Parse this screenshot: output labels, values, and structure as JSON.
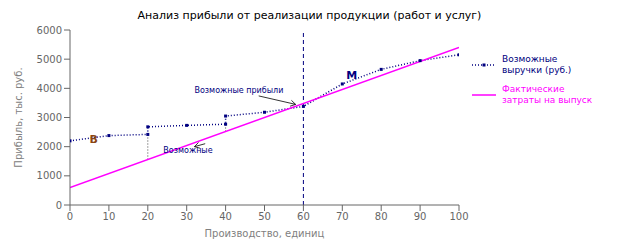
{
  "chart_data": {
    "type": "line",
    "title": "Анализ прибыли от реализации продукции (работ и услуг)",
    "x_label": "Производство, единиц",
    "y_label": "Прибыль, тыс. руб.",
    "xlim": [
      0,
      100
    ],
    "ylim": [
      0,
      6000
    ],
    "xticks": [
      0,
      10,
      20,
      30,
      40,
      50,
      60,
      70,
      80,
      90,
      100
    ],
    "yticks": [
      0,
      1000,
      2000,
      3000,
      4000,
      5000,
      6000
    ],
    "grid": false,
    "legend": "right",
    "series": [
      {
        "name": "Возможные\nвыручки (руб.)",
        "color": "#000080",
        "x": [
          0,
          10,
          20,
          20,
          30,
          40,
          40,
          50,
          60,
          70,
          80,
          90,
          100
        ],
        "values": [
          2200,
          2380,
          2420,
          2680,
          2730,
          2770,
          3050,
          3180,
          3380,
          4150,
          4650,
          4950,
          5150
        ],
        "line_style": "dotted",
        "marker": "square"
      },
      {
        "name": "Фактические\nзатраты на выпуск",
        "color": "#FF00FF",
        "x": [
          0,
          100
        ],
        "values": [
          600,
          5400
        ],
        "line_style": "solid"
      }
    ],
    "reference_lines": [
      {
        "x": 60,
        "color": "#000080",
        "line_style": "dashed"
      },
      {
        "x": 20,
        "y": [
          1560,
          2420
        ],
        "color": "#444444",
        "line_style": "dotted"
      },
      {
        "x": 40,
        "y": [
          2520,
          2770
        ],
        "color": "#444444",
        "line_style": "dotted"
      }
    ],
    "annotations": [
      {
        "text": "B",
        "x": 5,
        "y": 2260,
        "color": "#8B4513"
      },
      {
        "text": "M",
        "x": 71,
        "y": 4450,
        "color": "#000080"
      },
      {
        "text": "Возможные прибыли",
        "x": 32,
        "y": 3850,
        "arrow_to": [
          58,
          3450
        ],
        "color": "#000080"
      },
      {
        "text": "Возможные",
        "x": 24,
        "y": 1800,
        "arrow_to": [
          32,
          2000
        ],
        "color": "#000080"
      }
    ]
  }
}
